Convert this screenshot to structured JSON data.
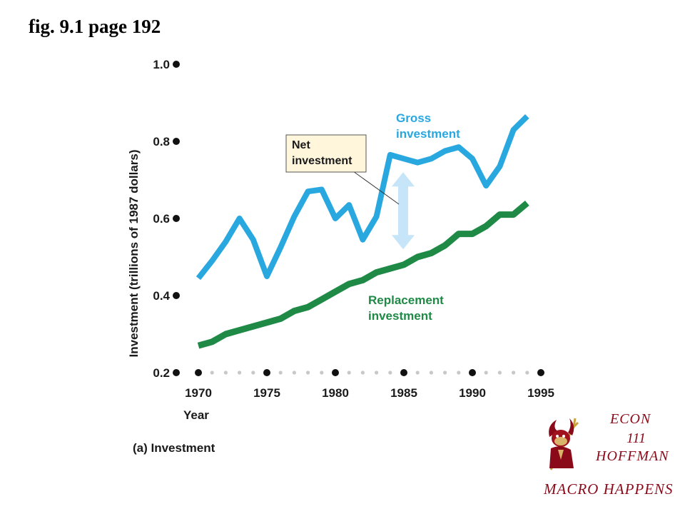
{
  "slide": {
    "title": "fig. 9.1 page 192",
    "panel_label": "(a) Investment"
  },
  "chart_data": {
    "type": "line",
    "xlabel": "Year",
    "ylabel": "Investment (trillions of 1987 dollars)",
    "x_ticks": [
      1970,
      1975,
      1980,
      1985,
      1990,
      1995
    ],
    "y_ticks": [
      0.2,
      0.4,
      0.6,
      0.8,
      1.0
    ],
    "y_tick_labels": [
      "0.2",
      "0.4",
      "0.6",
      "0.8",
      "1.0"
    ],
    "x_tick_labels": [
      "1970",
      "1975",
      "1980",
      "1985",
      "1990",
      "1995"
    ],
    "xlim": [
      1969.3,
      1995
    ],
    "ylim": [
      0.2,
      1.0
    ],
    "x": [
      1970,
      1971,
      1972,
      1973,
      1974,
      1975,
      1976,
      1977,
      1978,
      1979,
      1980,
      1981,
      1982,
      1983,
      1984,
      1985,
      1986,
      1987,
      1988,
      1989,
      1990,
      1991,
      1992,
      1993,
      1994
    ],
    "series": [
      {
        "name": "Gross investment",
        "color": "#29a8e0",
        "values": [
          0.445,
          0.49,
          0.54,
          0.6,
          0.545,
          0.45,
          0.525,
          0.605,
          0.67,
          0.675,
          0.6,
          0.635,
          0.545,
          0.605,
          0.765,
          0.755,
          0.745,
          0.755,
          0.775,
          0.785,
          0.755,
          0.685,
          0.735,
          0.83,
          0.865
        ]
      },
      {
        "name": "Replacement investment",
        "color": "#1e8a46",
        "values": [
          0.27,
          0.28,
          0.3,
          0.31,
          0.32,
          0.33,
          0.34,
          0.36,
          0.37,
          0.39,
          0.41,
          0.43,
          0.44,
          0.46,
          0.47,
          0.48,
          0.5,
          0.51,
          0.53,
          0.56,
          0.56,
          0.58,
          0.61,
          0.61,
          0.64
        ]
      }
    ],
    "annotations": [
      {
        "text_lines": [
          "Net",
          "investment"
        ],
        "arrow_year": 1985,
        "arrow_from": 0.72,
        "arrow_to": 0.52
      }
    ],
    "series_labels": {
      "gross": [
        "Gross",
        "investment"
      ],
      "replacement": [
        "Replacement",
        "investment"
      ]
    },
    "arrow_color": "#c6e5f8",
    "annotation_box_fill": "#fff6dc",
    "grid": false
  },
  "logo": {
    "line1": "ECON",
    "line2": "111",
    "line3": "HOFFMAN",
    "tagline": "MACRO HAPPENS",
    "icon": "sun-devil-mascot-icon",
    "color": "#8b0a1a"
  }
}
